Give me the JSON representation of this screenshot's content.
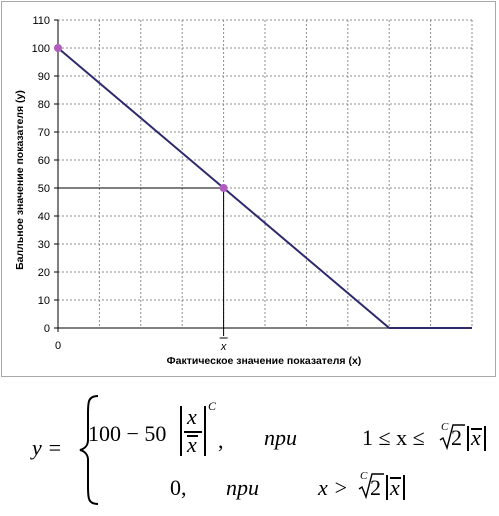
{
  "chart_data": {
    "type": "line",
    "x_tick_labels": [
      "0",
      "x"
    ],
    "y_ticks": [
      0,
      10,
      20,
      30,
      40,
      50,
      60,
      70,
      80,
      90,
      100,
      110
    ],
    "ylim": [
      0,
      110
    ],
    "xlabel": "Фактическое значение показателя (x)",
    "ylabel": "Балльное значение показателя (y)",
    "grid": true,
    "series": [
      {
        "points": [
          [
            0,
            100
          ],
          [
            4,
            50
          ],
          [
            8,
            0
          ],
          [
            10,
            0
          ]
        ],
        "color": "#2e2a6e"
      }
    ],
    "markers": [
      {
        "x": 0,
        "y": 100,
        "color": "#b05cc0"
      },
      {
        "x": 4,
        "y": 50,
        "color": "#b05cc0"
      }
    ],
    "reference_point": {
      "x": 4,
      "y": 50
    }
  },
  "formula": {
    "lhs": "y =",
    "row1_const": "100 − 50",
    "row1_num": "x",
    "row1_den": "x",
    "row1_exp": "C",
    "row1_comma": ",",
    "row1_cond_word": "при",
    "row1_cond_left": "1 ≤ x ≤",
    "row1_root_index": "C",
    "row1_root": "2",
    "row1_absx": "x",
    "row2_val": "0,",
    "row2_cond_word": "при",
    "row2_cond_left": "x >",
    "row2_root_index": "C",
    "row2_root": "2",
    "row2_absx": "x"
  }
}
